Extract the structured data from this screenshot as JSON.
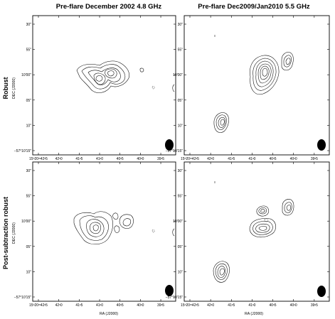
{
  "columns": [
    {
      "title": "Pre-flare December 2002  4.8 GHz"
    },
    {
      "title": "Pre-flare Dec2009/Jan2010  5.5 GHz"
    }
  ],
  "rows": [
    {
      "title": "Robust"
    },
    {
      "title": "Post-subtraction robust"
    }
  ],
  "axes": {
    "xlabel_left": "RA (J2000)",
    "xlabel_right": "RA (J2000)",
    "ylabel_top": "DEC (J2000)",
    "ylabel_bottom": "DEC (J2000)",
    "x_ticks": [
      "15ʰ20ᵐ42ˢ5",
      "42ˢ0",
      "41ˢ5",
      "41ˢ0",
      "40ˢ5",
      "40ˢ0",
      "39ˢ5"
    ],
    "y_ticks_top": [
      "30″",
      "55″",
      "10′00″",
      "05″",
      "10″",
      "−57°10′15″"
    ],
    "y_ticks_bottom": [
      "30″",
      "55″",
      "10′00″",
      "05″",
      "10″",
      "−57°10′15″"
    ]
  },
  "panels": [
    {
      "id": "robust-2002",
      "beam": "black"
    },
    {
      "id": "robust-2009",
      "beam": "black"
    },
    {
      "id": "postsub-2002",
      "beam": "black"
    },
    {
      "id": "postsub-2009",
      "beam": "black"
    }
  ]
}
